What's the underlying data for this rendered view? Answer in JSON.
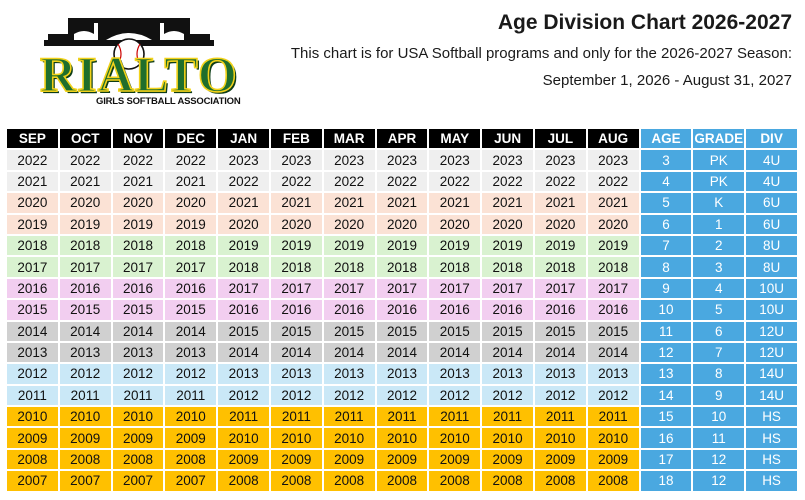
{
  "logo": {
    "word": "RIALTO",
    "subtitle": "GIRLS SOFTBALL ASSOCIATION"
  },
  "header": {
    "title": "Age Division Chart 2026-2027",
    "subtitle": "This chart is for USA Softball programs and only for the 2026-2027 Season:",
    "season": "September 1, 2026 - August 31, 2027"
  },
  "colors": {
    "header_black": "#000000",
    "info_blue": "#4aa8e0",
    "gray": "#efefef",
    "peach": "#fbe2d5",
    "green": "#d9f2d0",
    "pink": "#f2cef0",
    "dark_gray": "#d0d0d0",
    "light_blue": "#cae8f7",
    "gold": "#ffc000",
    "logo_green": "#1f6e2c",
    "logo_yellow": "#f2d21a"
  },
  "table": {
    "columns": [
      "SEP",
      "OCT",
      "NOV",
      "DEC",
      "JAN",
      "FEB",
      "MAR",
      "APR",
      "MAY",
      "JUN",
      "JUL",
      "AUG",
      "AGE",
      "GRADE",
      "DIV"
    ],
    "rows": [
      {
        "band": "gray",
        "years": [
          "2022",
          "2022",
          "2022",
          "2022",
          "2023",
          "2023",
          "2023",
          "2023",
          "2023",
          "2023",
          "2023",
          "2023"
        ],
        "age": "3",
        "grade": "PK",
        "div": "4U"
      },
      {
        "band": "gray",
        "years": [
          "2021",
          "2021",
          "2021",
          "2021",
          "2022",
          "2022",
          "2022",
          "2022",
          "2022",
          "2022",
          "2022",
          "2022"
        ],
        "age": "4",
        "grade": "PK",
        "div": "4U"
      },
      {
        "band": "peach",
        "years": [
          "2020",
          "2020",
          "2020",
          "2020",
          "2021",
          "2021",
          "2021",
          "2021",
          "2021",
          "2021",
          "2021",
          "2021"
        ],
        "age": "5",
        "grade": "K",
        "div": "6U"
      },
      {
        "band": "peach",
        "years": [
          "2019",
          "2019",
          "2019",
          "2019",
          "2020",
          "2020",
          "2020",
          "2020",
          "2020",
          "2020",
          "2020",
          "2020"
        ],
        "age": "6",
        "grade": "1",
        "div": "6U"
      },
      {
        "band": "green",
        "years": [
          "2018",
          "2018",
          "2018",
          "2018",
          "2019",
          "2019",
          "2019",
          "2019",
          "2019",
          "2019",
          "2019",
          "2019"
        ],
        "age": "7",
        "grade": "2",
        "div": "8U"
      },
      {
        "band": "green",
        "years": [
          "2017",
          "2017",
          "2017",
          "2017",
          "2018",
          "2018",
          "2018",
          "2018",
          "2018",
          "2018",
          "2018",
          "2018"
        ],
        "age": "8",
        "grade": "3",
        "div": "8U"
      },
      {
        "band": "pink",
        "years": [
          "2016",
          "2016",
          "2016",
          "2016",
          "2017",
          "2017",
          "2017",
          "2017",
          "2017",
          "2017",
          "2017",
          "2017"
        ],
        "age": "9",
        "grade": "4",
        "div": "10U"
      },
      {
        "band": "pink",
        "years": [
          "2015",
          "2015",
          "2015",
          "2015",
          "2016",
          "2016",
          "2016",
          "2016",
          "2016",
          "2016",
          "2016",
          "2016"
        ],
        "age": "10",
        "grade": "5",
        "div": "10U"
      },
      {
        "band": "dgray",
        "years": [
          "2014",
          "2014",
          "2014",
          "2014",
          "2015",
          "2015",
          "2015",
          "2015",
          "2015",
          "2015",
          "2015",
          "2015"
        ],
        "age": "11",
        "grade": "6",
        "div": "12U"
      },
      {
        "band": "dgray",
        "years": [
          "2013",
          "2013",
          "2013",
          "2013",
          "2014",
          "2014",
          "2014",
          "2014",
          "2014",
          "2014",
          "2014",
          "2014"
        ],
        "age": "12",
        "grade": "7",
        "div": "12U"
      },
      {
        "band": "lblue",
        "years": [
          "2012",
          "2012",
          "2012",
          "2012",
          "2013",
          "2013",
          "2013",
          "2013",
          "2013",
          "2013",
          "2013",
          "2013"
        ],
        "age": "13",
        "grade": "8",
        "div": "14U"
      },
      {
        "band": "lblue",
        "years": [
          "2011",
          "2011",
          "2011",
          "2011",
          "2012",
          "2012",
          "2012",
          "2012",
          "2012",
          "2012",
          "2012",
          "2012"
        ],
        "age": "14",
        "grade": "9",
        "div": "14U"
      },
      {
        "band": "gold",
        "years": [
          "2010",
          "2010",
          "2010",
          "2010",
          "2011",
          "2011",
          "2011",
          "2011",
          "2011",
          "2011",
          "2011",
          "2011"
        ],
        "age": "15",
        "grade": "10",
        "div": "HS"
      },
      {
        "band": "gold",
        "years": [
          "2009",
          "2009",
          "2009",
          "2009",
          "2010",
          "2010",
          "2010",
          "2010",
          "2010",
          "2010",
          "2010",
          "2010"
        ],
        "age": "16",
        "grade": "11",
        "div": "HS"
      },
      {
        "band": "gold",
        "years": [
          "2008",
          "2008",
          "2008",
          "2008",
          "2009",
          "2009",
          "2009",
          "2009",
          "2009",
          "2009",
          "2009",
          "2009"
        ],
        "age": "17",
        "grade": "12",
        "div": "HS"
      },
      {
        "band": "gold",
        "years": [
          "2007",
          "2007",
          "2007",
          "2007",
          "2008",
          "2008",
          "2008",
          "2008",
          "2008",
          "2008",
          "2008",
          "2008"
        ],
        "age": "18",
        "grade": "12",
        "div": "HS"
      }
    ]
  }
}
